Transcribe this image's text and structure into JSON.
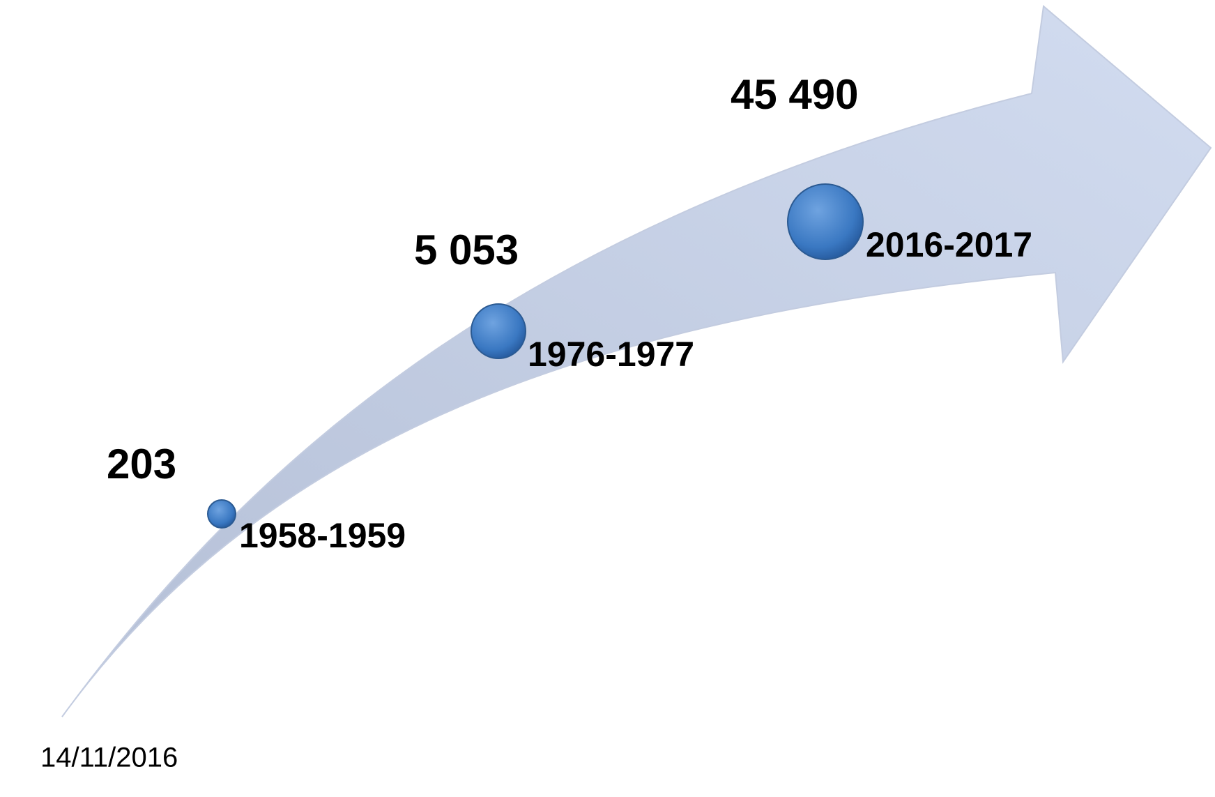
{
  "milestones": [
    {
      "value": "203",
      "period": "1958-1959"
    },
    {
      "value": "5 053",
      "period": "1976-1977"
    },
    {
      "value": "45 490",
      "period": "2016-2017"
    }
  ],
  "footer": {
    "date": "14/11/2016"
  }
}
